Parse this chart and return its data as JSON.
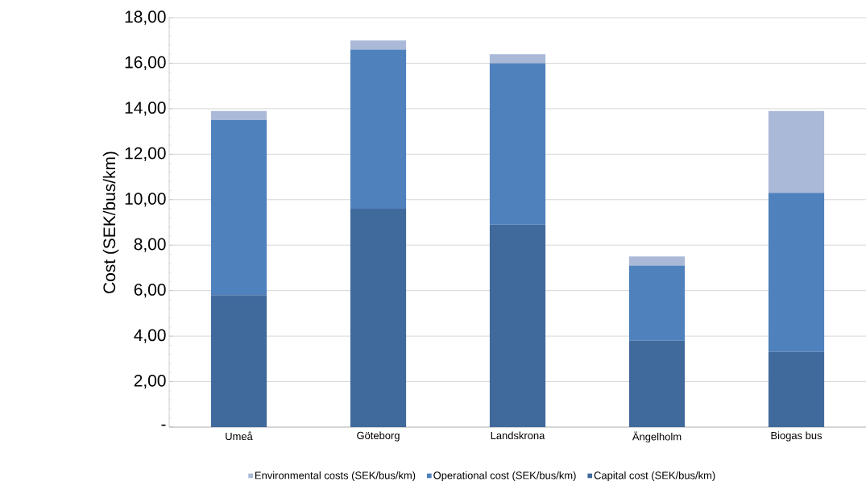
{
  "chart_data": {
    "type": "bar",
    "stacked": true,
    "ylabel": "Cost (SEK/bus/km)",
    "categories": [
      "Umeå",
      "Göteborg",
      "Landskrona",
      "Ängelholm",
      "Biogas bus"
    ],
    "series": [
      {
        "name": "Capital cost (SEK/bus/km)",
        "color": "#416a9c",
        "values": [
          5.8,
          9.6,
          8.9,
          3.8,
          3.3
        ]
      },
      {
        "name": "Operational cost (SEK/bus/km)",
        "color": "#4f81bd",
        "values": [
          7.7,
          7.0,
          7.1,
          3.3,
          7.0
        ]
      },
      {
        "name": "Environmental costs (SEK/bus/km)",
        "color": "#aab9d7",
        "values": [
          0.4,
          0.4,
          0.4,
          0.4,
          3.6
        ]
      }
    ],
    "ylim": [
      0,
      18
    ],
    "yticks": [
      {
        "value": 0,
        "label": "-"
      },
      {
        "value": 2,
        "label": "2,00"
      },
      {
        "value": 4,
        "label": "4,00"
      },
      {
        "value": 6,
        "label": "6,00"
      },
      {
        "value": 8,
        "label": "8,00"
      },
      {
        "value": 10,
        "label": "10,00"
      },
      {
        "value": 12,
        "label": "12,00"
      },
      {
        "value": 14,
        "label": "14,00"
      },
      {
        "value": 16,
        "label": "16,00"
      },
      {
        "value": 18,
        "label": "18,00"
      }
    ],
    "grid": "y",
    "legend": "bottom"
  }
}
